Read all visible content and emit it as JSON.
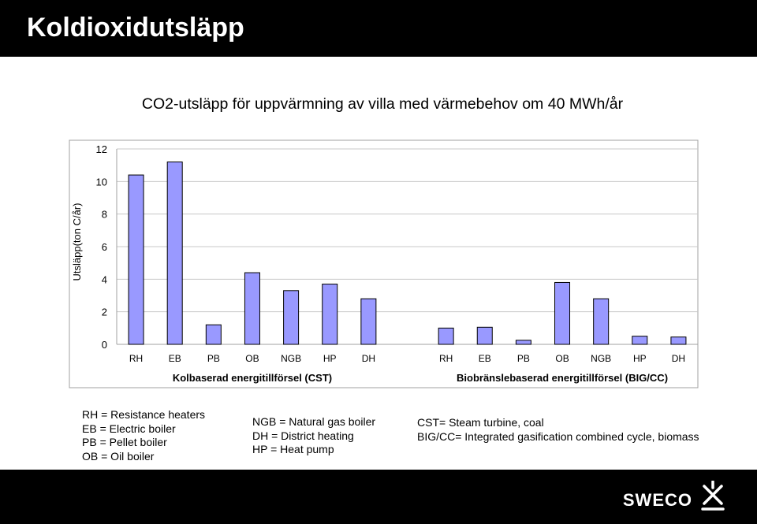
{
  "slide": {
    "title": "Koldioxidutsläpp"
  },
  "chart_data": {
    "type": "bar",
    "title": "CO2-utsläpp för uppvärmning av villa med värmebehov om 40 MWh/år",
    "ylabel": "Utsläpp(ton C/år)",
    "xlabel": "",
    "ylim": [
      0,
      12
    ],
    "yticks": [
      0,
      2,
      4,
      6,
      8,
      10,
      12
    ],
    "grid": true,
    "bar_color": "#9999ff",
    "groups": [
      {
        "label": "Kolbaserad energitillförsel (CST)",
        "categories": [
          "RH",
          "EB",
          "PB",
          "OB",
          "NGB",
          "HP",
          "DH"
        ],
        "values": [
          10.4,
          11.2,
          1.2,
          4.4,
          3.3,
          3.7,
          2.8
        ]
      },
      {
        "label": "Biobränslebaserad energitillförsel (BIG/CC)",
        "categories": [
          "RH",
          "EB",
          "PB",
          "OB",
          "NGB",
          "HP",
          "DH"
        ],
        "values": [
          1.0,
          1.05,
          0.25,
          3.8,
          2.8,
          0.5,
          0.45
        ]
      }
    ]
  },
  "legend": {
    "col1": [
      "RH = Resistance heaters",
      "EB = Electric boiler",
      "PB = Pellet boiler",
      "OB = Oil boiler"
    ],
    "col2": [
      "NGB = Natural gas boiler",
      "DH = District heating",
      "HP = Heat pump"
    ],
    "col3": [
      "CST= Steam turbine, coal",
      "BIG/CC= Integrated gasification combined cycle, biomass"
    ]
  },
  "footer": {
    "logo_text": "SWECO"
  }
}
